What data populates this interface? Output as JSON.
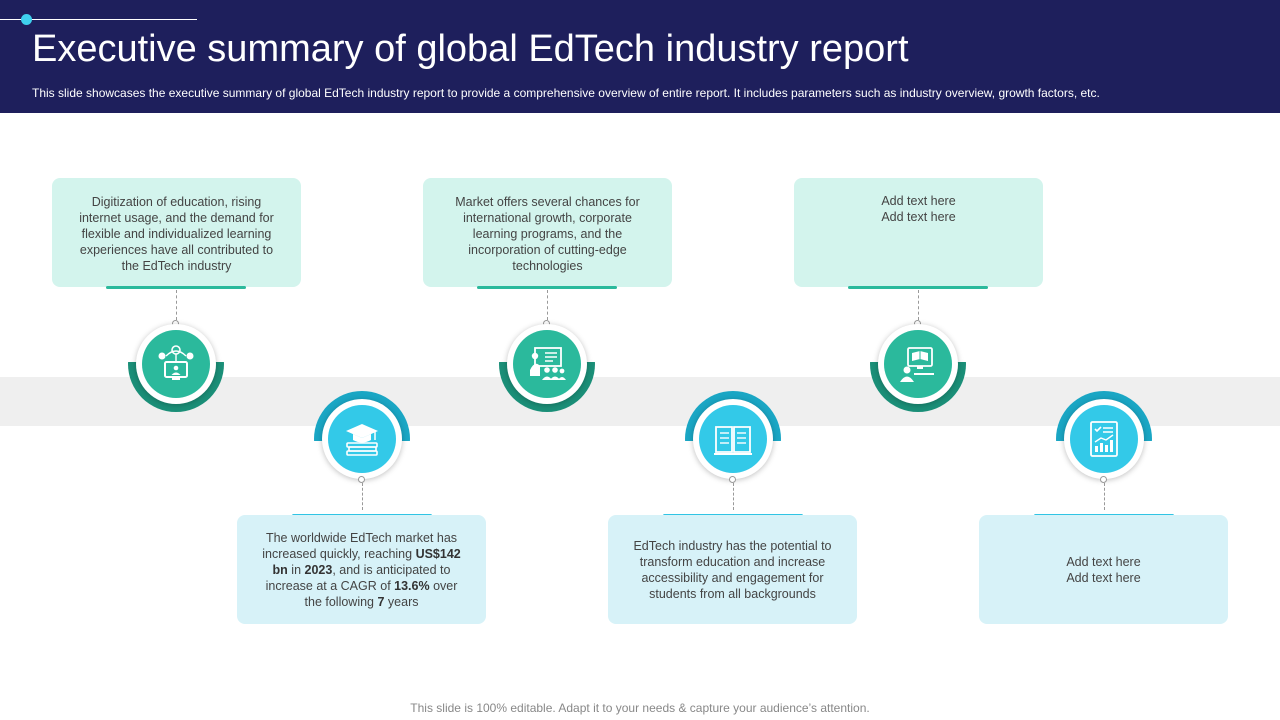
{
  "header": {
    "title": "Executive summary of global EdTech industry report",
    "subtitle": "This slide showcases the executive summary of global EdTech industry report to provide a comprehensive overview of entire report. It includes parameters such as industry overview, growth factors, etc."
  },
  "colors": {
    "header_bg": "#1e1f5c",
    "accent_green": "#2bb99c",
    "accent_cyan": "#33c9e8",
    "card_green": "#d3f4ed",
    "card_cyan": "#d7f2f8"
  },
  "top_cards": [
    {
      "text": "Digitization of education, rising internet usage, and the demand for flexible and individualized learning experiences have all contributed to the EdTech industry",
      "icon": "digital-network-icon"
    },
    {
      "text": "Market offers several chances for international growth, corporate learning programs, and the incorporation of cutting-edge technologies",
      "icon": "presentation-audience-icon"
    },
    {
      "line1": "Add text here",
      "line2": "Add text here",
      "icon": "online-learning-icon"
    }
  ],
  "bottom_cards": [
    {
      "t1": "The worldwide EdTech market has increased quickly, reaching ",
      "b1": "US$142 bn",
      "t2": " in ",
      "b2": "2023",
      "t3": ", and is anticipated to increase at a CAGR of ",
      "b3": "13.6%",
      "t4": " over the following ",
      "b4": "7",
      "t5": " years",
      "icon": "graduation-cap-books-icon"
    },
    {
      "text": "EdTech industry has the potential to transform education and increase accessibility and engagement for students from all backgrounds",
      "icon": "open-book-icon"
    },
    {
      "line1": "Add text here",
      "line2": "Add text here",
      "icon": "report-chart-icon"
    }
  ],
  "footer": "This slide is 100% editable. Adapt it to your needs & capture your audience’s attention."
}
